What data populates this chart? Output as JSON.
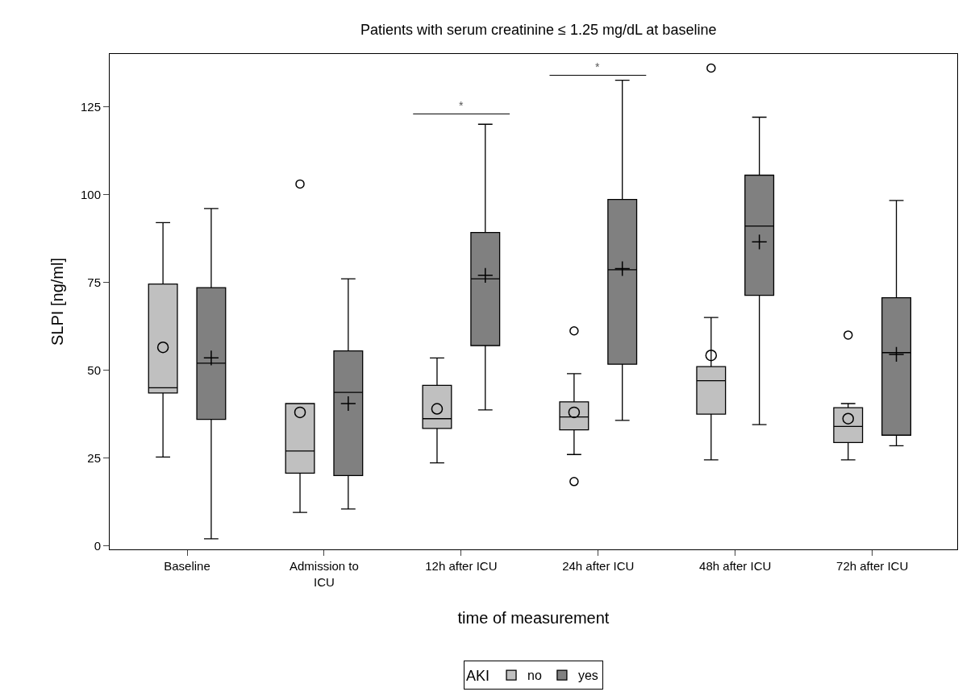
{
  "chart_data": {
    "type": "box",
    "title": "Patients with serum creatinine ≤ 1.25 mg/dL at baseline",
    "xlabel": "time of measurement",
    "ylabel": "SLPI [ng/ml]",
    "legend_title": "AKI",
    "categories": [
      "Baseline",
      "Admission to ICU",
      "12h after ICU",
      "24h after ICU",
      "48h after ICU",
      "72h after ICU"
    ],
    "ylim": [
      -1,
      140
    ],
    "yticks": [
      0,
      25,
      50,
      75,
      100,
      125
    ],
    "legend": "bottom",
    "series": [
      {
        "name": "no",
        "color": "#c0c0c0",
        "marker": "circle",
        "boxes": [
          {
            "low": 25.3,
            "q1": 43.5,
            "median": 45,
            "q3": 74.5,
            "high": 92,
            "mean": 56.5
          },
          {
            "low": 9.5,
            "q1": 20.7,
            "median": 27,
            "q3": 40.5,
            "high": 40.5,
            "mean": 38,
            "outliers": [
              103
            ]
          },
          {
            "low": 23.6,
            "q1": 33.4,
            "median": 36.2,
            "q3": 45.7,
            "high": 53.5,
            "mean": 39
          },
          {
            "low": 26,
            "q1": 33,
            "median": 36.7,
            "q3": 41,
            "high": 49,
            "mean": 38,
            "outliers": [
              61.2,
              18.3
            ]
          },
          {
            "low": 24.5,
            "q1": 37.5,
            "median": 47,
            "q3": 51,
            "high": 65,
            "mean": 54.2,
            "outliers": [
              136
            ]
          },
          {
            "low": 24.5,
            "q1": 29.4,
            "median": 34,
            "q3": 39.3,
            "high": 40.5,
            "mean": 36.2,
            "outliers": [
              60
            ]
          }
        ]
      },
      {
        "name": "yes",
        "color": "#808080",
        "marker": "cross",
        "boxes": [
          {
            "low": 2,
            "q1": 36,
            "median": 52,
            "q3": 73.5,
            "high": 96,
            "mean": 53.5
          },
          {
            "low": 10.5,
            "q1": 20,
            "median": 43.7,
            "q3": 55.5,
            "high": 76,
            "mean": 40.5
          },
          {
            "low": 38.7,
            "q1": 57,
            "median": 76,
            "q3": 89.2,
            "high": 120,
            "mean": 77
          },
          {
            "low": 35.7,
            "q1": 51.7,
            "median": 78.6,
            "q3": 98.6,
            "high": 132.5,
            "mean": 78.9
          },
          {
            "low": 34.5,
            "q1": 71.3,
            "median": 91,
            "q3": 105.5,
            "high": 122,
            "mean": 86.5
          },
          {
            "low": 28.5,
            "q1": 31.5,
            "median": 55,
            "q3": 70.6,
            "high": 98.3,
            "mean": 54.5
          }
        ]
      }
    ],
    "annotations": [
      "*",
      "*"
    ]
  }
}
